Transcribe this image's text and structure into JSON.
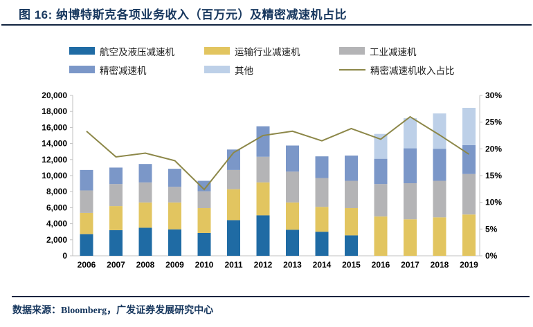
{
  "header": {
    "title": "图 16: 纳博特斯克各项业务收入（百万元）及精密减速机占比"
  },
  "footer": {
    "source": "数据来源：Bloomberg，广发证券发展研究中心"
  },
  "chart_data": {
    "type": "bar",
    "subtype": "stacked-bars-with-percent-line",
    "title": "纳博特斯克各项业务收入（百万元）及精密减速机占比",
    "legend_position": "top",
    "grid": false,
    "categories": [
      "2006",
      "2007",
      "2008",
      "2009",
      "2010",
      "2011",
      "2012",
      "2013",
      "2014",
      "2015",
      "2016",
      "2017",
      "2018",
      "2019"
    ],
    "series": [
      {
        "key": "aviation-hydraulic",
        "name": "航空及液压减速机",
        "color": "#1F6BA4",
        "values": [
          2700,
          3200,
          3500,
          3300,
          2850,
          4450,
          5050,
          3250,
          3000,
          2550,
          0,
          0,
          0,
          0
        ]
      },
      {
        "key": "transport",
        "name": "运输行业减速机",
        "color": "#E2C560",
        "values": [
          2650,
          3000,
          3150,
          3350,
          3100,
          3850,
          4100,
          3400,
          3100,
          3400,
          4900,
          4550,
          4800,
          5150
        ]
      },
      {
        "key": "industrial",
        "name": "工业减速机",
        "color": "#B4B4B6",
        "values": [
          2800,
          2750,
          2500,
          1950,
          2100,
          2400,
          3200,
          3850,
          3600,
          3400,
          4050,
          4500,
          4550,
          5050
        ]
      },
      {
        "key": "precision",
        "name": "精密减速机",
        "color": "#7B97C8",
        "values": [
          2550,
          2050,
          2300,
          2250,
          1300,
          2550,
          3800,
          3250,
          2700,
          3150,
          3150,
          4350,
          4000,
          3600
        ]
      },
      {
        "key": "other",
        "name": "其他",
        "color": "#BDD0E8",
        "values": [
          0,
          0,
          0,
          0,
          0,
          0,
          0,
          0,
          0,
          0,
          3100,
          3750,
          4400,
          4650
        ]
      }
    ],
    "line": {
      "name": "精密减速机收入占比",
      "color": "#8C8748",
      "axis": "right",
      "values": [
        23.3,
        18.5,
        19.2,
        17.8,
        12.4,
        19.3,
        22.5,
        23.3,
        21.5,
        23.8,
        21.8,
        26.0,
        22.6,
        19.0
      ]
    },
    "left_axis": {
      "min": 0,
      "max": 20000,
      "step": 2000
    },
    "right_axis": {
      "min": 0,
      "max": 30,
      "step": 5,
      "suffix": "%"
    }
  }
}
